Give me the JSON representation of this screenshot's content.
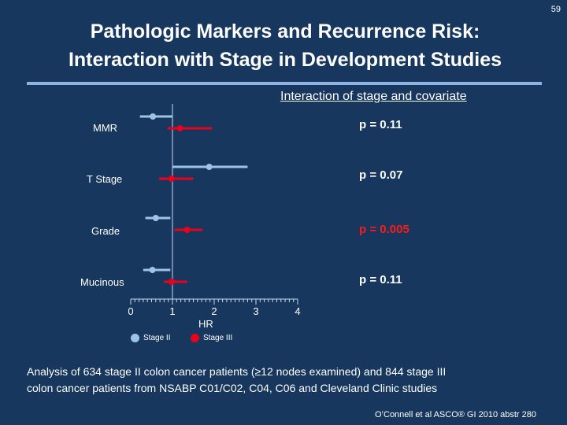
{
  "slide_number": "59",
  "title_line1": "Pathologic Markers and Recurrence Risk:",
  "title_line2": "Interaction with Stage in Development Studies",
  "interaction_heading": "Interaction of stage and covariate",
  "caption_line1": "Analysis of 634 stage II colon cancer patients (≥12 nodes examined) and 844 stage III",
  "caption_line2": "colon cancer patients from NSABP C01/C02, C04, C06 and Cleveland Clinic studies",
  "citation": "O’Connell et al ASCO® GI 2010 abstr 280",
  "colors": {
    "stage_ii": "#9dc3e6",
    "stage_iii": "#e8001c",
    "background": "#17375e"
  },
  "chart_data": {
    "type": "forest",
    "xlabel": "HR",
    "xlim": [
      0,
      4
    ],
    "xticks": [
      "0",
      "1",
      "2",
      "3",
      "4"
    ],
    "reference_line": 1,
    "legend": [
      {
        "name": "Stage II",
        "color": "#9dc3e6"
      },
      {
        "name": "Stage III",
        "color": "#e8001c"
      }
    ],
    "rows": [
      {
        "label": "MMR",
        "p_value": "p = 0.11",
        "p_highlight": false,
        "stage_ii": {
          "hr": 0.53,
          "lo": 0.22,
          "hi": 1.0
        },
        "stage_iii": {
          "hr": 1.18,
          "lo": 0.88,
          "hi": 1.95
        }
      },
      {
        "label": "T Stage",
        "p_value": "p = 0.07",
        "p_highlight": false,
        "stage_ii": {
          "hr": 1.88,
          "lo": 1.0,
          "hi": 2.8
        },
        "stage_iii": {
          "hr": 0.98,
          "lo": 0.68,
          "hi": 1.5
        }
      },
      {
        "label": "Grade",
        "p_value": "p = 0.005",
        "p_highlight": true,
        "stage_ii": {
          "hr": 0.6,
          "lo": 0.35,
          "hi": 0.95
        },
        "stage_iii": {
          "hr": 1.35,
          "lo": 1.05,
          "hi": 1.72
        }
      },
      {
        "label": "Mucinous",
        "p_value": "p = 0.11",
        "p_highlight": false,
        "stage_ii": {
          "hr": 0.52,
          "lo": 0.3,
          "hi": 0.95
        },
        "stage_iii": {
          "hr": 0.98,
          "lo": 0.8,
          "hi": 1.35
        }
      }
    ]
  }
}
